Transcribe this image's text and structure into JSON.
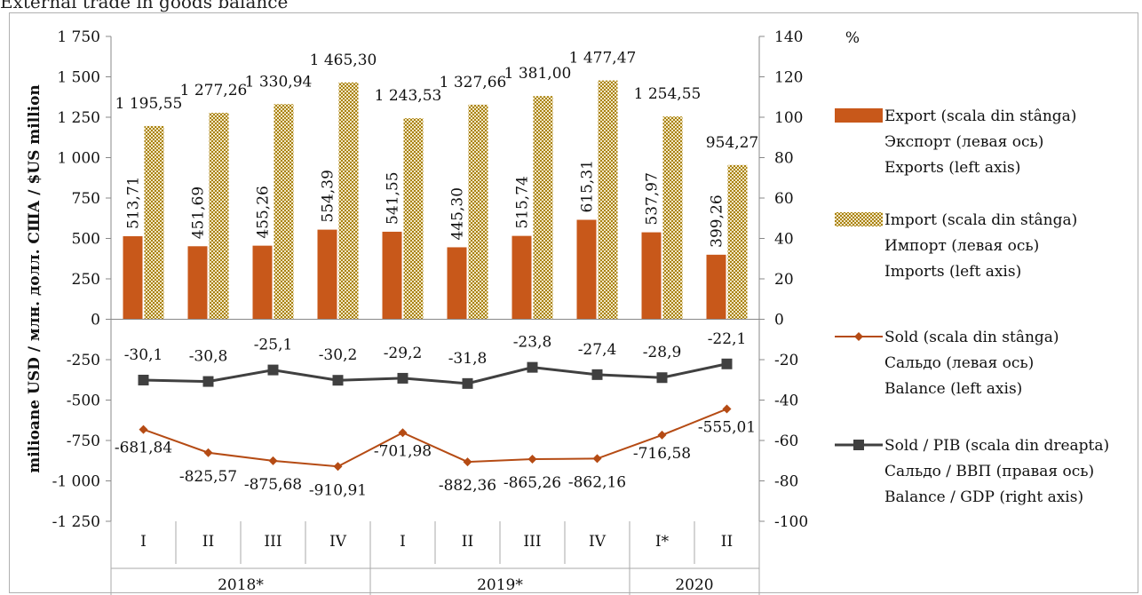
{
  "title": "External trade in goods balance",
  "chart_data": {
    "type": "bar",
    "categories": [
      "I",
      "II",
      "III",
      "IV",
      "I",
      "II",
      "III",
      "IV",
      "I*",
      "II"
    ],
    "groups": [
      {
        "label": "2018*",
        "span": 4
      },
      {
        "label": "2019*",
        "span": 4
      },
      {
        "label": "2020",
        "span": 2
      }
    ],
    "left_axis": {
      "label": "milioane USD / млн. долл. США / $US million",
      "ylim": [
        -1250,
        1750
      ],
      "ticks": [
        -1250,
        -1000,
        -750,
        -500,
        -250,
        0,
        250,
        500,
        750,
        1000,
        1250,
        1500,
        1750
      ],
      "tick_labels": [
        "-1 250",
        "-1 000",
        "-750",
        "-500",
        "-250",
        "0",
        "250",
        "500",
        "750",
        "1 000",
        "1 250",
        "1 500",
        "1 750"
      ]
    },
    "right_axis": {
      "label": "%",
      "ylim": [
        -100,
        140
      ],
      "ticks": [
        -100,
        -80,
        -60,
        -40,
        -20,
        0,
        20,
        40,
        60,
        80,
        100,
        120,
        140
      ],
      "tick_labels": [
        "-100",
        "-80",
        "-60",
        "-40",
        "-20",
        "0",
        "20",
        "40",
        "60",
        "80",
        "100",
        "120",
        "140"
      ]
    },
    "series": [
      {
        "key": "export",
        "kind": "bar",
        "axis": "left",
        "color": "#c8581a",
        "legend": [
          "Export (scala din stânga)",
          "Экспорт (левая ось)",
          "Exports (left axis)"
        ],
        "values": [
          513.71,
          451.69,
          455.26,
          554.39,
          541.55,
          445.3,
          515.74,
          615.31,
          537.97,
          399.26
        ],
        "labels": [
          "513,71",
          "451,69",
          "455,26",
          "554,39",
          "541,55",
          "445,30",
          "515,74",
          "615,31",
          "537,97",
          "399,26"
        ]
      },
      {
        "key": "import",
        "kind": "bar-pattern",
        "axis": "left",
        "color": "#a9820f",
        "legend": [
          "Import (scala din stânga)",
          "Импорт (левая ось)",
          "Imports (left axis)"
        ],
        "values": [
          1195.55,
          1277.26,
          1330.94,
          1465.3,
          1243.53,
          1327.66,
          1381.0,
          1477.47,
          1254.55,
          954.27
        ],
        "labels": [
          "1 195,55",
          "1 277,26",
          "1 330,94",
          "1 465,30",
          "1 243,53",
          "1 327,66",
          "1 381,00",
          "1 477,47",
          "1 254,55",
          "954,27"
        ]
      },
      {
        "key": "balance",
        "kind": "line-diamond",
        "axis": "left",
        "color": "#b54b14",
        "legend": [
          "Sold (scala din stânga)",
          "Сальдо (левая ось)",
          "Balance (left axis)"
        ],
        "values": [
          -681.84,
          -825.57,
          -875.68,
          -910.91,
          -701.98,
          -882.36,
          -865.26,
          -862.16,
          -716.58,
          -555.01
        ],
        "labels": [
          "-681,84",
          "-825,57",
          "-875,68",
          "-910,91",
          "-701,98",
          "-882,36",
          "-865,26",
          "-862,16",
          "-716,58",
          "-555,01"
        ]
      },
      {
        "key": "balance_gdp",
        "kind": "line-square",
        "axis": "right",
        "color": "#404040",
        "legend": [
          "Sold / PIB (scala din dreapta)",
          "Сальдо / ВВП (правая ось)",
          "Balance / GDP (right axis)"
        ],
        "values": [
          -30.1,
          -30.8,
          -25.1,
          -30.2,
          -29.2,
          -31.8,
          -23.8,
          -27.4,
          -28.9,
          -22.1
        ],
        "labels": [
          "-30,1",
          "-30,8",
          "-25,1",
          "-30,2",
          "-29,2",
          "-31,8",
          "-23,8",
          "-27,4",
          "-28,9",
          "-22,1"
        ]
      }
    ],
    "legend_position": "right",
    "grid": false
  }
}
